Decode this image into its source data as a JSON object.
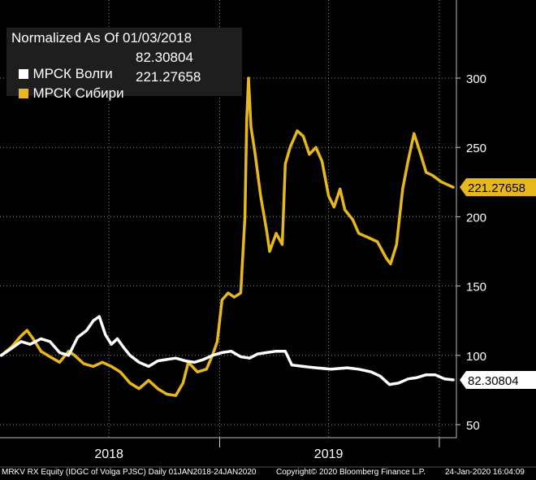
{
  "legend": {
    "title": "Normalized As Of 01/03/2018",
    "items": [
      {
        "label": "МРСК Волги",
        "value": "82.30804",
        "color": "#ffffff"
      },
      {
        "label": "МРСК Сибири",
        "value": "221.27658",
        "color": "#e6b81e"
      }
    ]
  },
  "footer": {
    "left": "MRKV RX Equity (IDGC of Volga PJSC)  Daily 01JAN2018-24JAN2020",
    "center": "Copyright© 2020 Bloomberg Finance L.P.",
    "right": "24-Jan-2020 16:04:09"
  },
  "chart_data": {
    "type": "line",
    "x_range": [
      "2018-01-01",
      "2020-01-24"
    ],
    "x_tick_labels": [
      "2018",
      "2019"
    ],
    "y_ticks": [
      50,
      100,
      150,
      200,
      250,
      300
    ],
    "ylim": [
      40,
      310
    ],
    "grid": true,
    "y_axis_side": "right",
    "series": [
      {
        "name": "МРСК Волги",
        "color": "#ffffff",
        "last_value_label": "82.30804",
        "points": [
          [
            "2018-01-03",
            100
          ],
          [
            "2018-01-20",
            105
          ],
          [
            "2018-02-05",
            110
          ],
          [
            "2018-02-20",
            108
          ],
          [
            "2018-03-10",
            112
          ],
          [
            "2018-03-25",
            110
          ],
          [
            "2018-04-10",
            102
          ],
          [
            "2018-04-25",
            100
          ],
          [
            "2018-05-10",
            113
          ],
          [
            "2018-05-25",
            118
          ],
          [
            "2018-06-05",
            125
          ],
          [
            "2018-06-15",
            128
          ],
          [
            "2018-06-25",
            115
          ],
          [
            "2018-07-05",
            108
          ],
          [
            "2018-07-15",
            112
          ],
          [
            "2018-07-25",
            106
          ],
          [
            "2018-08-05",
            100
          ],
          [
            "2018-08-20",
            95
          ],
          [
            "2018-09-05",
            92
          ],
          [
            "2018-09-20",
            96
          ],
          [
            "2018-10-05",
            97
          ],
          [
            "2018-10-20",
            98
          ],
          [
            "2018-11-05",
            96
          ],
          [
            "2018-11-20",
            95
          ],
          [
            "2018-12-05",
            97
          ],
          [
            "2018-12-20",
            100
          ],
          [
            "2019-01-05",
            102
          ],
          [
            "2019-01-20",
            103
          ],
          [
            "2019-02-05",
            99
          ],
          [
            "2019-02-20",
            98
          ],
          [
            "2019-03-05",
            101
          ],
          [
            "2019-03-20",
            102
          ],
          [
            "2019-04-05",
            103
          ],
          [
            "2019-04-20",
            103
          ],
          [
            "2019-05-01",
            93
          ],
          [
            "2019-05-20",
            92
          ],
          [
            "2019-06-10",
            91
          ],
          [
            "2019-07-05",
            90
          ],
          [
            "2019-08-01",
            91
          ],
          [
            "2019-08-20",
            90
          ],
          [
            "2019-09-10",
            88
          ],
          [
            "2019-09-25",
            85
          ],
          [
            "2019-10-10",
            79
          ],
          [
            "2019-10-25",
            80
          ],
          [
            "2019-11-10",
            83
          ],
          [
            "2019-11-25",
            84
          ],
          [
            "2019-12-10",
            86
          ],
          [
            "2019-12-25",
            86
          ],
          [
            "2020-01-10",
            83
          ],
          [
            "2020-01-24",
            82.30804
          ]
        ]
      },
      {
        "name": "МРСК Сибири",
        "color": "#e6b81e",
        "last_value_label": "221.27658",
        "points": [
          [
            "2018-01-03",
            100
          ],
          [
            "2018-01-20",
            106
          ],
          [
            "2018-02-05",
            114
          ],
          [
            "2018-02-15",
            118
          ],
          [
            "2018-02-25",
            112
          ],
          [
            "2018-03-10",
            103
          ],
          [
            "2018-03-25",
            99
          ],
          [
            "2018-04-10",
            95
          ],
          [
            "2018-04-25",
            103
          ],
          [
            "2018-05-05",
            100
          ],
          [
            "2018-05-20",
            94
          ],
          [
            "2018-06-05",
            92
          ],
          [
            "2018-06-20",
            95
          ],
          [
            "2018-07-05",
            92
          ],
          [
            "2018-07-20",
            88
          ],
          [
            "2018-08-05",
            80
          ],
          [
            "2018-08-20",
            76
          ],
          [
            "2018-09-05",
            82
          ],
          [
            "2018-09-20",
            76
          ],
          [
            "2018-10-05",
            72
          ],
          [
            "2018-10-20",
            71
          ],
          [
            "2018-11-01",
            80
          ],
          [
            "2018-11-10",
            95
          ],
          [
            "2018-11-25",
            88
          ],
          [
            "2018-12-10",
            90
          ],
          [
            "2018-12-20",
            100
          ],
          [
            "2018-12-28",
            110
          ],
          [
            "2019-01-05",
            140
          ],
          [
            "2019-01-15",
            145
          ],
          [
            "2019-01-25",
            142
          ],
          [
            "2019-02-05",
            145
          ],
          [
            "2019-02-12",
            200
          ],
          [
            "2019-02-15",
            270
          ],
          [
            "2019-02-18",
            300
          ],
          [
            "2019-02-22",
            265
          ],
          [
            "2019-03-01",
            245
          ],
          [
            "2019-03-10",
            215
          ],
          [
            "2019-03-20",
            190
          ],
          [
            "2019-03-25",
            175
          ],
          [
            "2019-04-05",
            188
          ],
          [
            "2019-04-15",
            180
          ],
          [
            "2019-04-20",
            238
          ],
          [
            "2019-04-28",
            250
          ],
          [
            "2019-05-10",
            262
          ],
          [
            "2019-05-20",
            258
          ],
          [
            "2019-05-30",
            245
          ],
          [
            "2019-06-10",
            250
          ],
          [
            "2019-06-20",
            240
          ],
          [
            "2019-07-01",
            215
          ],
          [
            "2019-07-10",
            207
          ],
          [
            "2019-07-20",
            220
          ],
          [
            "2019-07-28",
            205
          ],
          [
            "2019-08-10",
            198
          ],
          [
            "2019-08-20",
            188
          ],
          [
            "2019-09-05",
            185
          ],
          [
            "2019-09-20",
            182
          ],
          [
            "2019-10-05",
            170
          ],
          [
            "2019-10-12",
            166
          ],
          [
            "2019-10-22",
            180
          ],
          [
            "2019-11-01",
            220
          ],
          [
            "2019-11-10",
            240
          ],
          [
            "2019-11-20",
            260
          ],
          [
            "2019-12-01",
            245
          ],
          [
            "2019-12-10",
            232
          ],
          [
            "2019-12-20",
            230
          ],
          [
            "2020-01-05",
            225
          ],
          [
            "2020-01-24",
            221.27658
          ]
        ]
      }
    ]
  }
}
